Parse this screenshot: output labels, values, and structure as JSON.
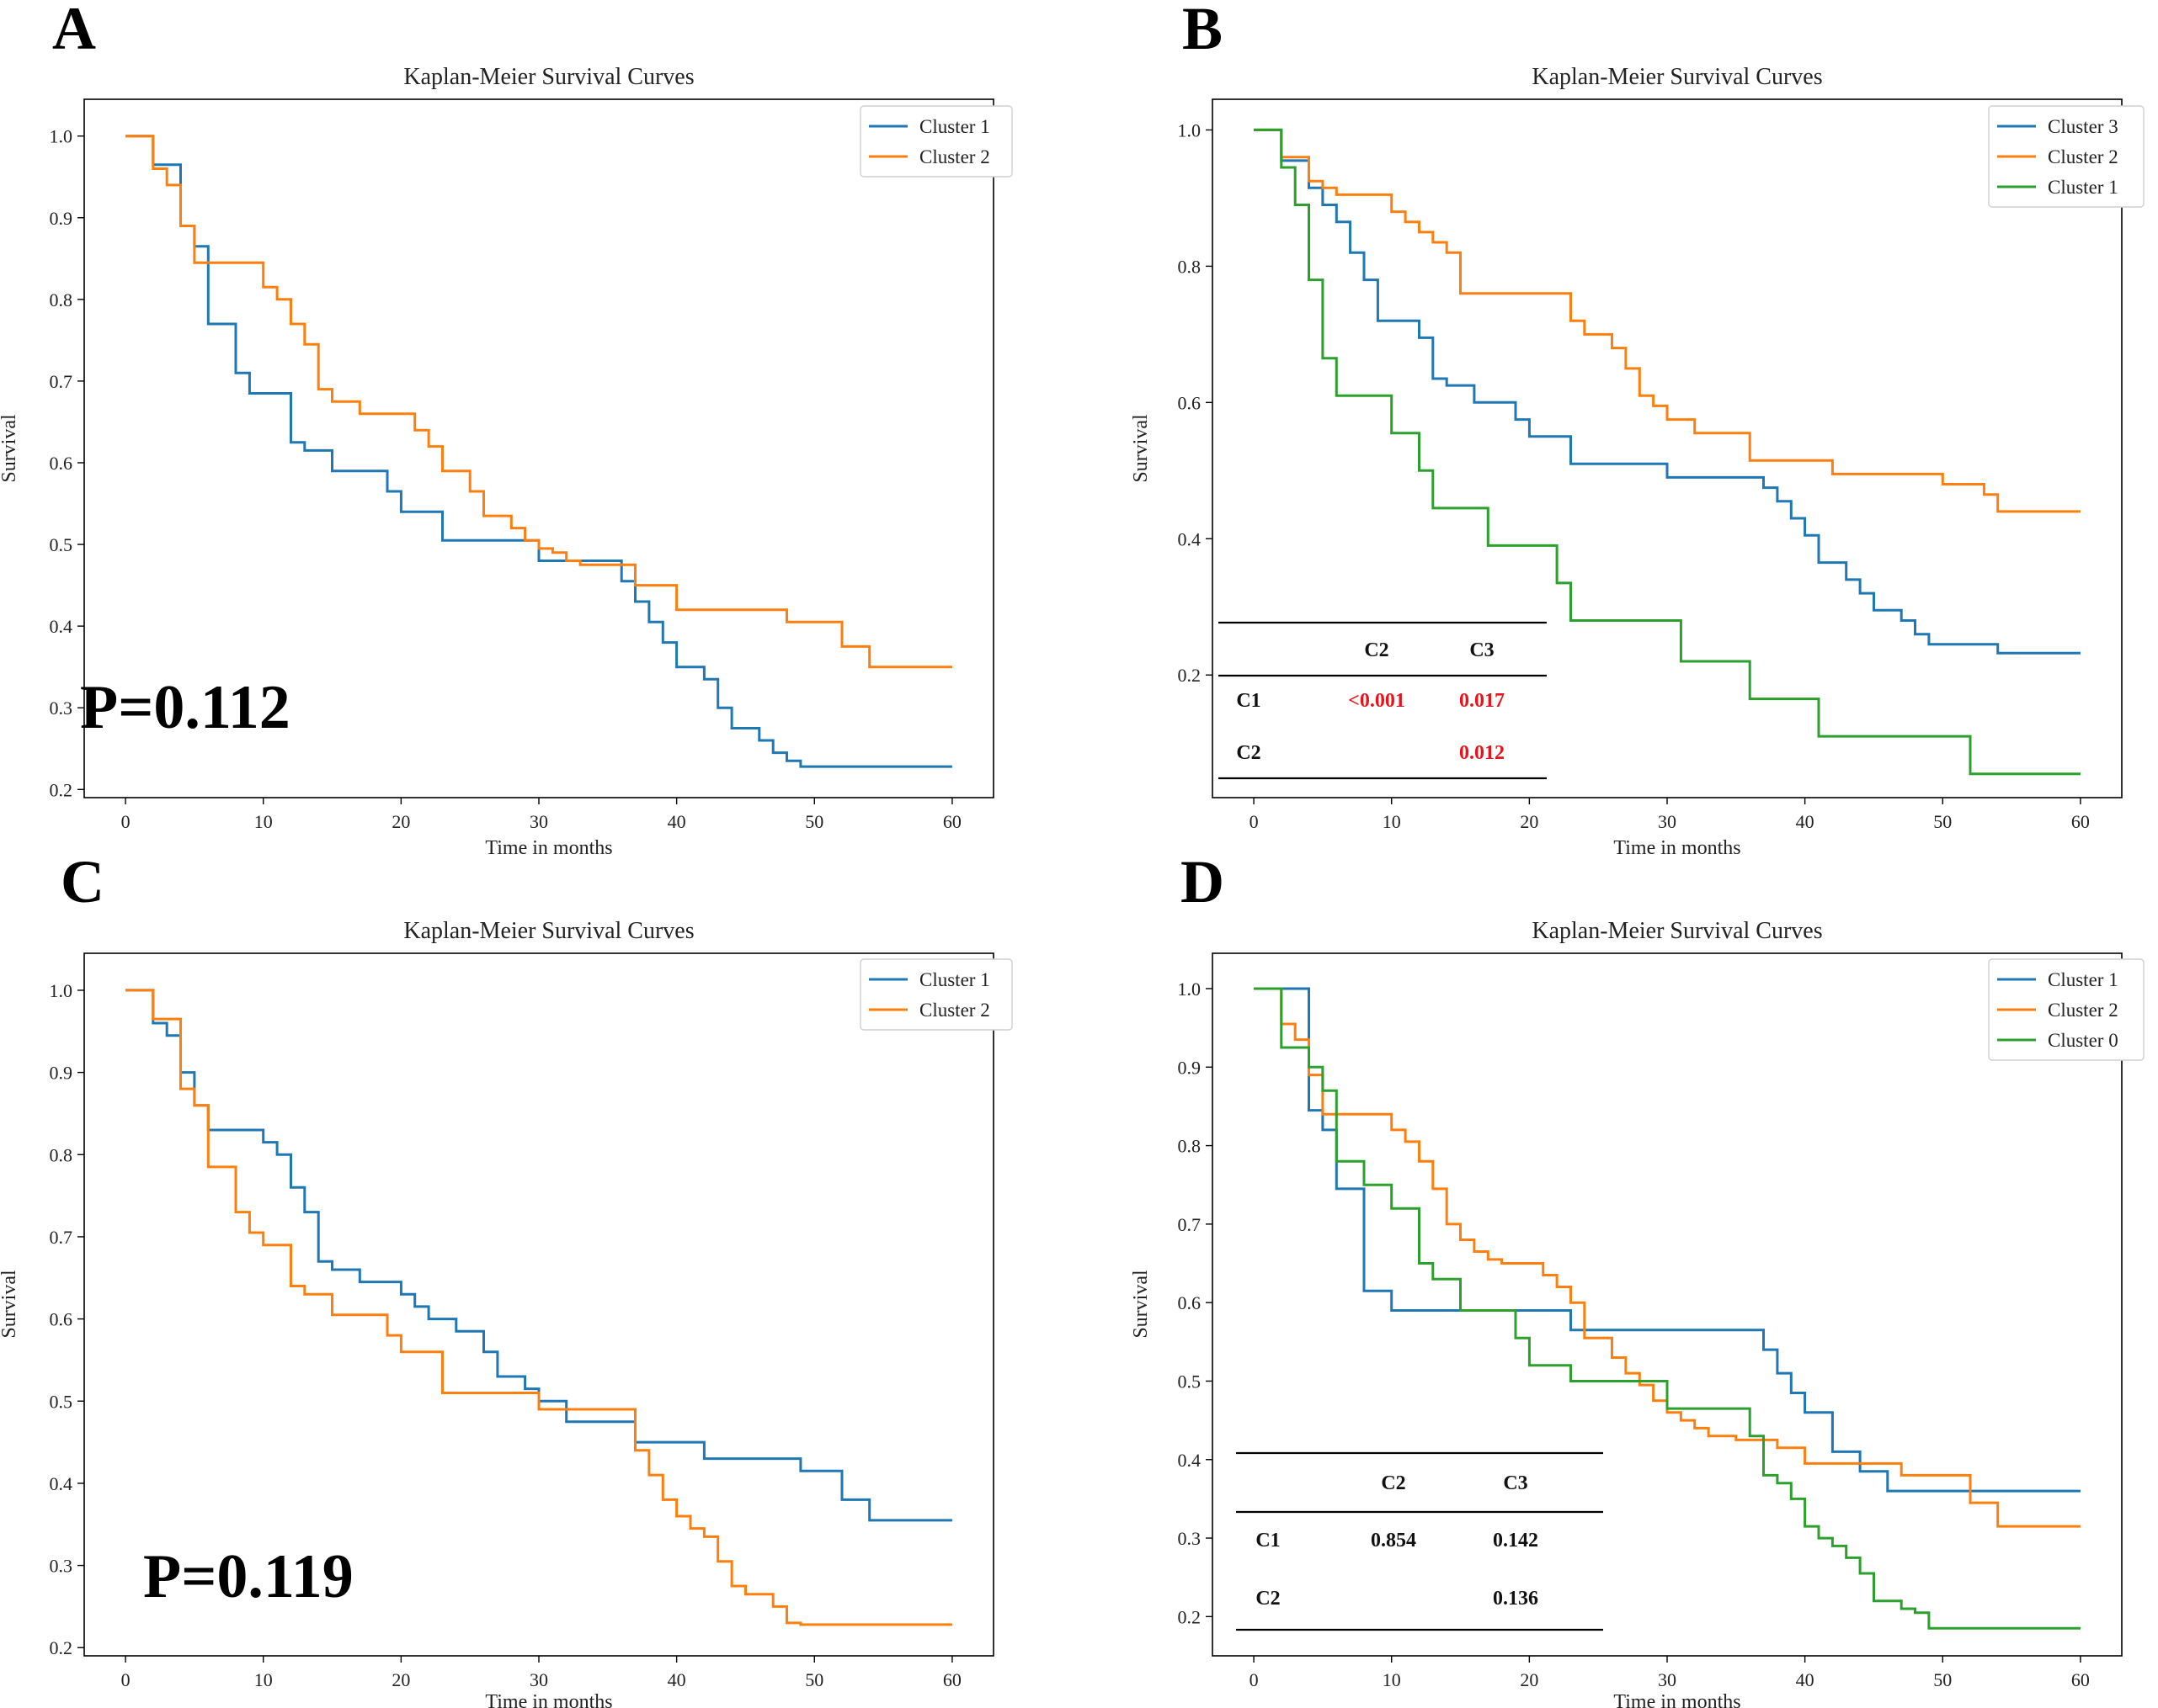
{
  "colors": {
    "blue": "#1f77b4",
    "orange": "#ff7f0e",
    "green": "#2ca02c",
    "red": "#e8141c"
  },
  "chart_data": [
    {
      "panel": "A",
      "type": "line",
      "step": true,
      "title": "Kaplan-Meier Survival Curves",
      "xlabel": "Time in months",
      "ylabel": "Survival",
      "xlim": [
        -3,
        63
      ],
      "ylim": [
        0.19,
        1.045
      ],
      "xticks": [
        0,
        10,
        20,
        30,
        40,
        50,
        60
      ],
      "yticks": [
        0.2,
        0.3,
        0.4,
        0.5,
        0.6,
        0.7,
        0.8,
        0.9,
        1.0
      ],
      "legend_position": "top-right",
      "annotation": "P=0.112",
      "series": [
        {
          "name": "Cluster 1",
          "color": "blue",
          "times": [
            0,
            2,
            4,
            5,
            6,
            8,
            9,
            12,
            13,
            15,
            19,
            20,
            23,
            30,
            36,
            37,
            38,
            39,
            40,
            42,
            43,
            44,
            46,
            47,
            48,
            49,
            60
          ],
          "survival": [
            1.0,
            0.965,
            0.89,
            0.865,
            0.77,
            0.71,
            0.685,
            0.625,
            0.615,
            0.59,
            0.565,
            0.54,
            0.505,
            0.48,
            0.455,
            0.43,
            0.405,
            0.38,
            0.35,
            0.335,
            0.3,
            0.275,
            0.26,
            0.245,
            0.235,
            0.228,
            0.228
          ]
        },
        {
          "name": "Cluster 2",
          "color": "orange",
          "times": [
            0,
            2,
            3,
            4,
            5,
            10,
            11,
            12,
            13,
            14,
            15,
            17,
            21,
            22,
            23,
            25,
            26,
            28,
            29,
            30,
            31,
            32,
            33,
            37,
            40,
            48,
            52,
            54,
            60
          ],
          "survival": [
            1.0,
            0.96,
            0.94,
            0.89,
            0.845,
            0.815,
            0.8,
            0.77,
            0.745,
            0.69,
            0.675,
            0.66,
            0.64,
            0.62,
            0.59,
            0.565,
            0.535,
            0.52,
            0.505,
            0.495,
            0.49,
            0.48,
            0.475,
            0.45,
            0.42,
            0.405,
            0.375,
            0.35,
            0.35
          ]
        }
      ]
    },
    {
      "panel": "B",
      "type": "line",
      "step": true,
      "title": "Kaplan-Meier Survival Curves",
      "xlabel": "Time in months",
      "ylabel": "Survival",
      "xlim": [
        -3,
        63
      ],
      "ylim": [
        0.02,
        1.045
      ],
      "xticks": [
        0,
        10,
        20,
        30,
        40,
        50,
        60
      ],
      "yticks": [
        0.2,
        0.4,
        0.6,
        0.8,
        1.0
      ],
      "legend_position": "top-right",
      "series": [
        {
          "name": "Cluster 3",
          "color": "blue",
          "times": [
            0,
            2,
            4,
            5,
            6,
            7,
            8,
            9,
            12,
            13,
            14,
            16,
            19,
            20,
            23,
            30,
            37,
            38,
            39,
            40,
            41,
            43,
            44,
            45,
            47,
            48,
            49,
            54,
            60
          ],
          "survival": [
            1.0,
            0.955,
            0.915,
            0.89,
            0.865,
            0.82,
            0.78,
            0.72,
            0.695,
            0.635,
            0.625,
            0.6,
            0.575,
            0.55,
            0.51,
            0.49,
            0.475,
            0.455,
            0.43,
            0.405,
            0.365,
            0.34,
            0.32,
            0.295,
            0.28,
            0.26,
            0.245,
            0.232,
            0.232
          ]
        },
        {
          "name": "Cluster 2",
          "color": "orange",
          "times": [
            0,
            2,
            4,
            5,
            6,
            10,
            11,
            12,
            13,
            14,
            15,
            23,
            24,
            26,
            27,
            28,
            29,
            30,
            32,
            36,
            42,
            50,
            53,
            54,
            60
          ],
          "survival": [
            1.0,
            0.96,
            0.925,
            0.915,
            0.905,
            0.88,
            0.865,
            0.85,
            0.835,
            0.82,
            0.76,
            0.72,
            0.7,
            0.68,
            0.65,
            0.61,
            0.595,
            0.575,
            0.555,
            0.515,
            0.495,
            0.48,
            0.465,
            0.44,
            0.44
          ]
        },
        {
          "name": "Cluster 1",
          "color": "green",
          "times": [
            0,
            2,
            3,
            4,
            5,
            6,
            10,
            12,
            13,
            17,
            22,
            23,
            31,
            36,
            41,
            52,
            60
          ],
          "survival": [
            1.0,
            0.945,
            0.89,
            0.78,
            0.665,
            0.61,
            0.555,
            0.5,
            0.445,
            0.39,
            0.335,
            0.28,
            0.22,
            0.165,
            0.11,
            0.055,
            0.055
          ]
        }
      ],
      "pvalue_table": {
        "columns": [
          "C2",
          "C3"
        ],
        "rows": [
          {
            "label": "C1",
            "values": [
              "<0.001",
              "0.017"
            ]
          },
          {
            "label": "C2",
            "values": [
              "",
              "0.012"
            ]
          }
        ],
        "value_color": "red"
      }
    },
    {
      "panel": "C",
      "type": "line",
      "step": true,
      "title": "Kaplan-Meier Survival Curves",
      "xlabel": "Time in months",
      "ylabel": "Survival",
      "xlim": [
        -3,
        63
      ],
      "ylim": [
        0.19,
        1.045
      ],
      "xticks": [
        0,
        10,
        20,
        30,
        40,
        50,
        60
      ],
      "yticks": [
        0.2,
        0.3,
        0.4,
        0.5,
        0.6,
        0.7,
        0.8,
        0.9,
        1.0
      ],
      "legend_position": "top-right",
      "annotation": "P=0.119",
      "series": [
        {
          "name": "Cluster 1",
          "color": "blue",
          "times": [
            0,
            2,
            3,
            4,
            5,
            6,
            10,
            11,
            12,
            13,
            14,
            15,
            17,
            20,
            21,
            22,
            24,
            26,
            27,
            29,
            30,
            32,
            37,
            42,
            49,
            52,
            54,
            60
          ],
          "survival": [
            1.0,
            0.96,
            0.945,
            0.9,
            0.86,
            0.83,
            0.815,
            0.8,
            0.76,
            0.73,
            0.67,
            0.66,
            0.645,
            0.63,
            0.615,
            0.6,
            0.585,
            0.56,
            0.53,
            0.515,
            0.5,
            0.475,
            0.45,
            0.43,
            0.415,
            0.38,
            0.355,
            0.355
          ]
        },
        {
          "name": "Cluster 2",
          "color": "orange",
          "times": [
            0,
            2,
            4,
            5,
            6,
            8,
            9,
            10,
            12,
            13,
            15,
            19,
            20,
            23,
            30,
            37,
            38,
            39,
            40,
            41,
            42,
            43,
            44,
            45,
            47,
            48,
            49,
            60
          ],
          "survival": [
            1.0,
            0.965,
            0.88,
            0.86,
            0.785,
            0.73,
            0.705,
            0.69,
            0.64,
            0.63,
            0.605,
            0.58,
            0.56,
            0.51,
            0.49,
            0.44,
            0.41,
            0.38,
            0.36,
            0.345,
            0.335,
            0.305,
            0.275,
            0.265,
            0.25,
            0.23,
            0.228,
            0.228
          ]
        }
      ]
    },
    {
      "panel": "D",
      "type": "line",
      "step": true,
      "title": "Kaplan-Meier Survival Curves",
      "xlabel": "Time in months",
      "ylabel": "Survival",
      "xlim": [
        -3,
        63
      ],
      "ylim": [
        0.15,
        1.045
      ],
      "xticks": [
        0,
        10,
        20,
        30,
        40,
        50,
        60
      ],
      "yticks": [
        0.2,
        0.3,
        0.4,
        0.5,
        0.6,
        0.7,
        0.8,
        0.9,
        1.0
      ],
      "legend_position": "top-right",
      "series": [
        {
          "name": "Cluster 1",
          "color": "blue",
          "times": [
            0,
            4,
            5,
            6,
            8,
            10,
            23,
            37,
            38,
            39,
            40,
            42,
            44,
            46,
            48,
            60
          ],
          "survival": [
            1.0,
            0.845,
            0.82,
            0.745,
            0.615,
            0.59,
            0.565,
            0.54,
            0.51,
            0.485,
            0.46,
            0.41,
            0.385,
            0.36,
            0.36,
            0.36
          ]
        },
        {
          "name": "Cluster 2",
          "color": "orange",
          "times": [
            0,
            2,
            3,
            4,
            5,
            10,
            11,
            12,
            13,
            14,
            15,
            16,
            17,
            18,
            21,
            22,
            23,
            24,
            26,
            27,
            28,
            29,
            30,
            31,
            32,
            33,
            35,
            38,
            40,
            47,
            52,
            54,
            60
          ],
          "survival": [
            1.0,
            0.955,
            0.935,
            0.89,
            0.84,
            0.82,
            0.805,
            0.78,
            0.745,
            0.7,
            0.68,
            0.665,
            0.655,
            0.65,
            0.635,
            0.62,
            0.6,
            0.555,
            0.53,
            0.51,
            0.495,
            0.475,
            0.46,
            0.45,
            0.44,
            0.43,
            0.425,
            0.415,
            0.395,
            0.38,
            0.345,
            0.315,
            0.315
          ]
        },
        {
          "name": "Cluster 0",
          "color": "green",
          "times": [
            0,
            2,
            4,
            5,
            6,
            8,
            10,
            12,
            13,
            15,
            19,
            20,
            23,
            30,
            36,
            37,
            38,
            39,
            40,
            41,
            42,
            43,
            44,
            45,
            47,
            48,
            49,
            60
          ],
          "survival": [
            1.0,
            0.925,
            0.9,
            0.87,
            0.78,
            0.75,
            0.72,
            0.65,
            0.63,
            0.59,
            0.555,
            0.52,
            0.5,
            0.465,
            0.43,
            0.38,
            0.37,
            0.35,
            0.315,
            0.3,
            0.29,
            0.275,
            0.255,
            0.22,
            0.21,
            0.205,
            0.185,
            0.185
          ]
        }
      ],
      "pvalue_table": {
        "columns": [
          "C2",
          "C3"
        ],
        "rows": [
          {
            "label": "C1",
            "values": [
              "0.854",
              "0.142"
            ]
          },
          {
            "label": "C2",
            "values": [
              "",
              "0.136"
            ]
          }
        ],
        "value_color": "black"
      }
    }
  ]
}
